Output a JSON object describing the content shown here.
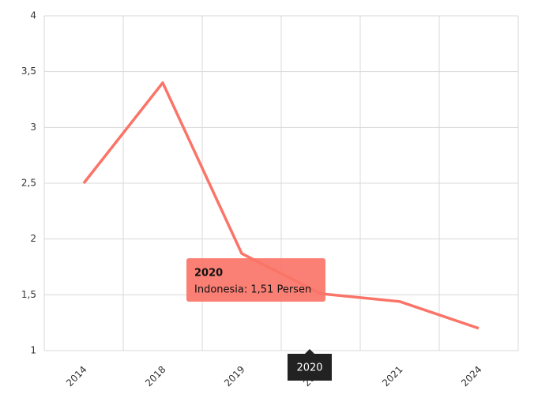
{
  "chart_data": {
    "type": "line",
    "categories": [
      "2014",
      "2018",
      "2019",
      "2020",
      "2021",
      "2024"
    ],
    "values": [
      2.5,
      3.4,
      1.87,
      1.51,
      1.44,
      1.2
    ],
    "color": "#fa7468",
    "ylim": [
      1,
      4
    ],
    "yticks": [
      1,
      {
        "value": 1.5,
        "label": "1,5"
      },
      2,
      {
        "value": 2.5,
        "label": "2,5"
      },
      3,
      {
        "value": 3.5,
        "label": "3,5"
      },
      4
    ],
    "grid": true,
    "tooltip": {
      "title": "2020",
      "text": "Indonesia: 1,51 Persen"
    }
  }
}
